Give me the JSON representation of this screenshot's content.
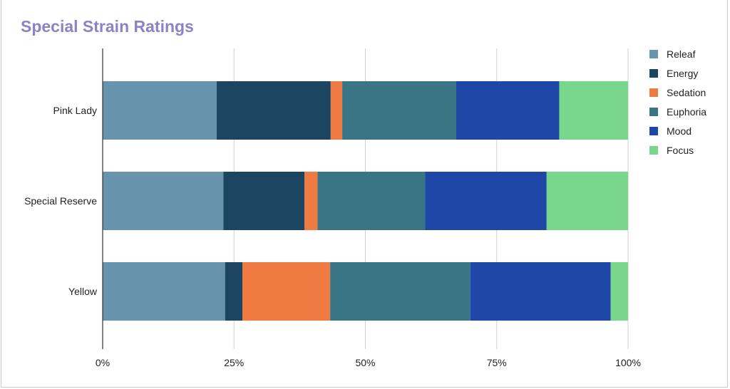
{
  "chart_data": {
    "type": "bar",
    "orientation": "horizontal",
    "stacked": "percent",
    "title": "Special Strain Ratings",
    "categories": [
      "Pink Lady",
      "Special Reserve",
      "Yellow"
    ],
    "series": [
      {
        "name": "Releaf",
        "color": "#6793ad",
        "values": [
          21.7,
          23.0,
          23.3
        ]
      },
      {
        "name": "Energy",
        "color": "#1b4560",
        "values": [
          21.7,
          15.4,
          3.3
        ]
      },
      {
        "name": "Sedation",
        "color": "#ef7b42",
        "values": [
          2.2,
          2.5,
          16.7
        ]
      },
      {
        "name": "Euphoria",
        "color": "#3a7585",
        "values": [
          21.7,
          20.5,
          26.7
        ]
      },
      {
        "name": "Mood",
        "color": "#1e47a8",
        "values": [
          19.6,
          23.1,
          26.7
        ]
      },
      {
        "name": "Focus",
        "color": "#78d68d",
        "values": [
          13.1,
          15.5,
          3.3
        ]
      }
    ],
    "xticks": [
      "0%",
      "25%",
      "50%",
      "75%",
      "100%"
    ],
    "xlim": [
      0,
      100
    ],
    "grid": true,
    "legend_position": "right"
  }
}
